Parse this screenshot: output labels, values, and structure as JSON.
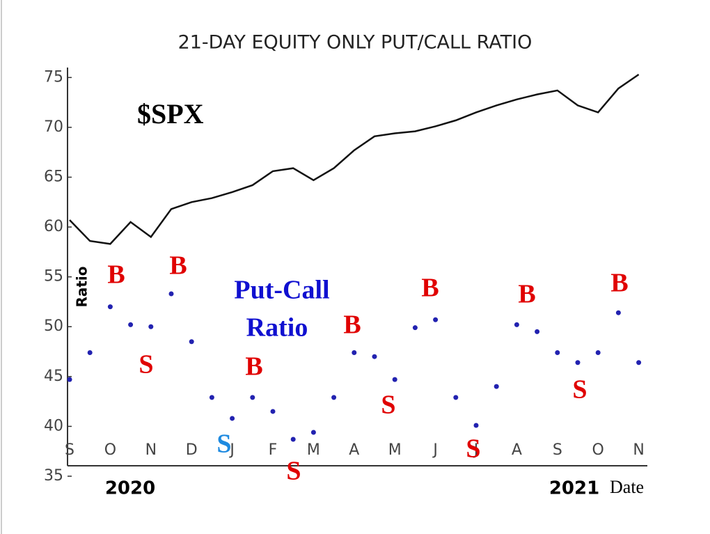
{
  "chart_data": {
    "type": "line",
    "title": "21-DAY EQUITY ONLY PUT/CALL RATIO",
    "y_label": "Ratio",
    "x_label": "Date",
    "years": [
      "2020",
      "2021"
    ],
    "annotations": [
      "$SPX",
      "Put-Call",
      "Ratio"
    ],
    "signals": [
      {
        "text": "B",
        "color": "#e00000"
      },
      {
        "text": "S",
        "color": "#e00000"
      },
      {
        "text": "B",
        "color": "#e00000"
      },
      {
        "text": "S",
        "color": "#1e8ae0"
      },
      {
        "text": "B",
        "color": "#e00000"
      },
      {
        "text": "S",
        "color": "#e00000"
      },
      {
        "text": "B",
        "color": "#e00000"
      },
      {
        "text": "S",
        "color": "#e00000"
      },
      {
        "text": "B",
        "color": "#e00000"
      },
      {
        "text": "S",
        "color": "#e00000"
      },
      {
        "text": "B",
        "color": "#e00000"
      },
      {
        "text": "S",
        "color": "#e00000"
      },
      {
        "text": "B",
        "color": "#e00000"
      }
    ],
    "categories": [
      "S",
      null,
      "O",
      null,
      "N",
      null,
      "D",
      null,
      "J",
      null,
      "F",
      null,
      "M",
      null,
      "A",
      null,
      "M",
      null,
      "J",
      null,
      "J",
      null,
      "A",
      null,
      "S",
      null,
      "O",
      null,
      "N"
    ],
    "series": [
      {
        "name": "$SPX",
        "color": "#111111",
        "marker": "line",
        "values": [
          60.7,
          58.6,
          58.3,
          60.5,
          59.0,
          61.8,
          62.5,
          62.9,
          63.5,
          64.2,
          65.6,
          65.9,
          64.7,
          65.9,
          67.7,
          69.1,
          69.4,
          69.6,
          70.1,
          70.7,
          71.5,
          72.2,
          72.8,
          73.3,
          73.7,
          72.2,
          71.5,
          73.9,
          75.3
        ]
      },
      {
        "name": "Put-Call Ratio",
        "color": "#2222b0",
        "marker": "dots",
        "values": [
          44.7,
          47.4,
          52.0,
          50.2,
          50.0,
          53.3,
          48.5,
          42.9,
          40.8,
          42.9,
          41.5,
          38.7,
          39.4,
          42.9,
          47.4,
          47.0,
          44.7,
          49.9,
          50.7,
          42.9,
          40.1,
          44.0,
          50.2,
          49.5,
          47.4,
          46.4,
          47.4,
          51.4,
          46.4
        ]
      }
    ],
    "ylim": [
      35,
      76
    ],
    "yticks": [
      35,
      40,
      45,
      50,
      55,
      60,
      65,
      70,
      75
    ]
  }
}
